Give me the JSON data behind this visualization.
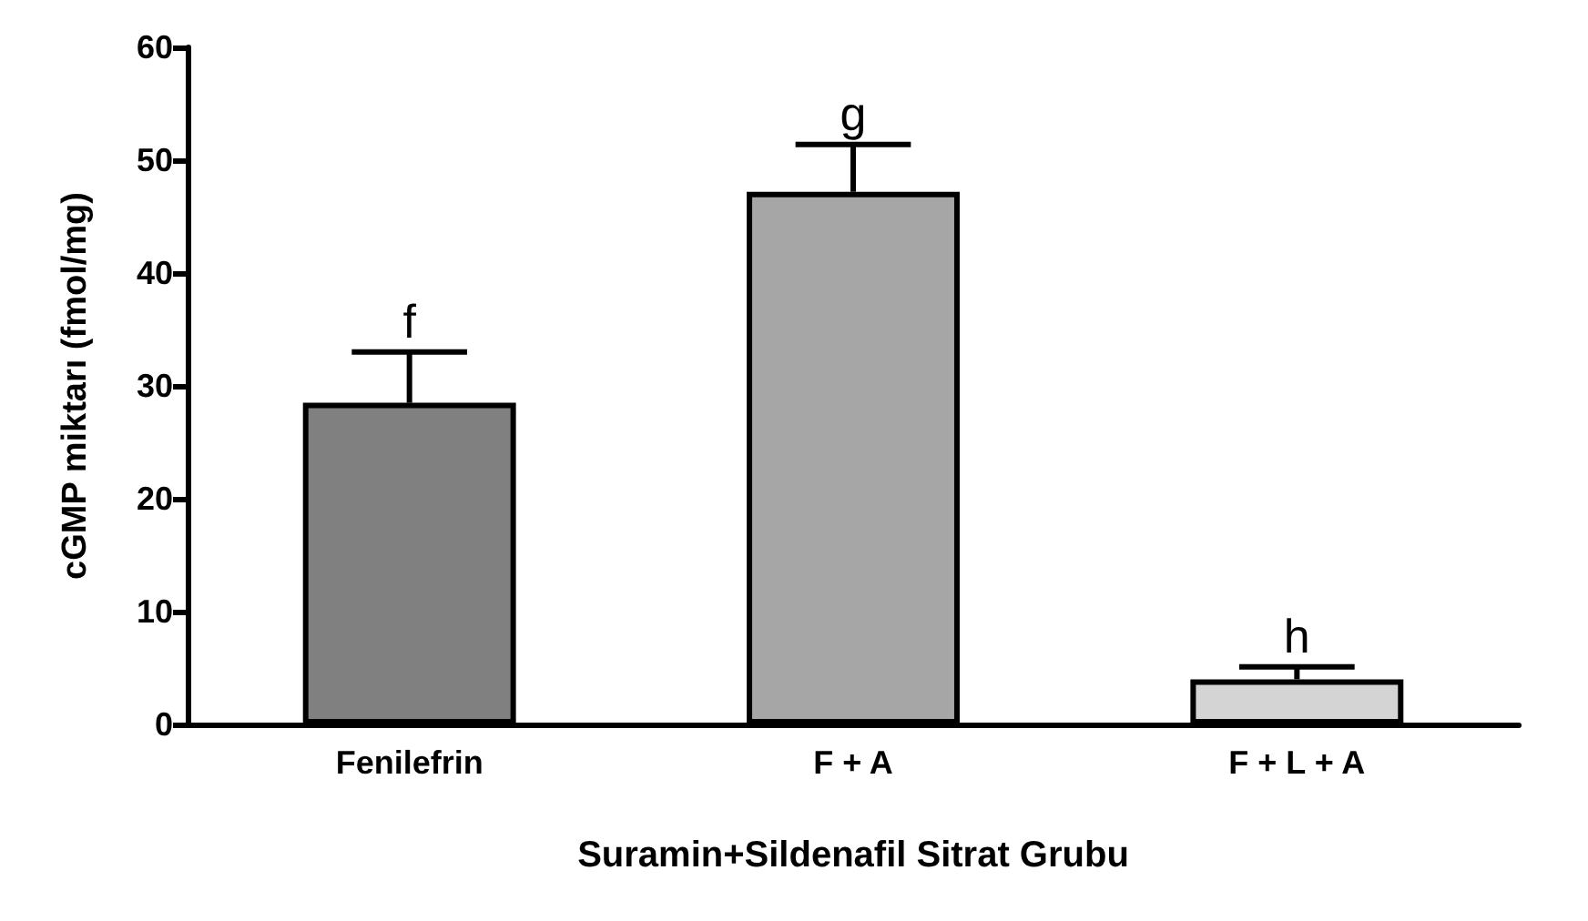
{
  "chart_data": {
    "type": "bar",
    "xlabel": "Suramin+Sildenafil Sitrat Grubu",
    "ylabel": "cGMP miktarı (fmol/mg)",
    "categories": [
      "Fenilefrin",
      "F + A",
      "F + L + A"
    ],
    "values": [
      28.5,
      47.2,
      4
    ],
    "colors": [
      "#808080",
      "#a6a6a6",
      "#d4d4d4"
    ],
    "errors": [
      [
        28.5,
        33
      ],
      [
        47.2,
        51.4
      ],
      [
        4,
        5.1
      ]
    ],
    "ylim": [
      0,
      60
    ],
    "yticks": [
      0,
      10,
      20,
      30,
      40,
      50,
      60
    ],
    "grid": false,
    "annotations": [
      {
        "text": "f",
        "x": "Fenilefrin",
        "y": 33
      },
      {
        "text": "g",
        "x": "F + A",
        "y": 51.4
      },
      {
        "text": "h",
        "x": "F + L + A",
        "y": 5.1
      }
    ]
  }
}
